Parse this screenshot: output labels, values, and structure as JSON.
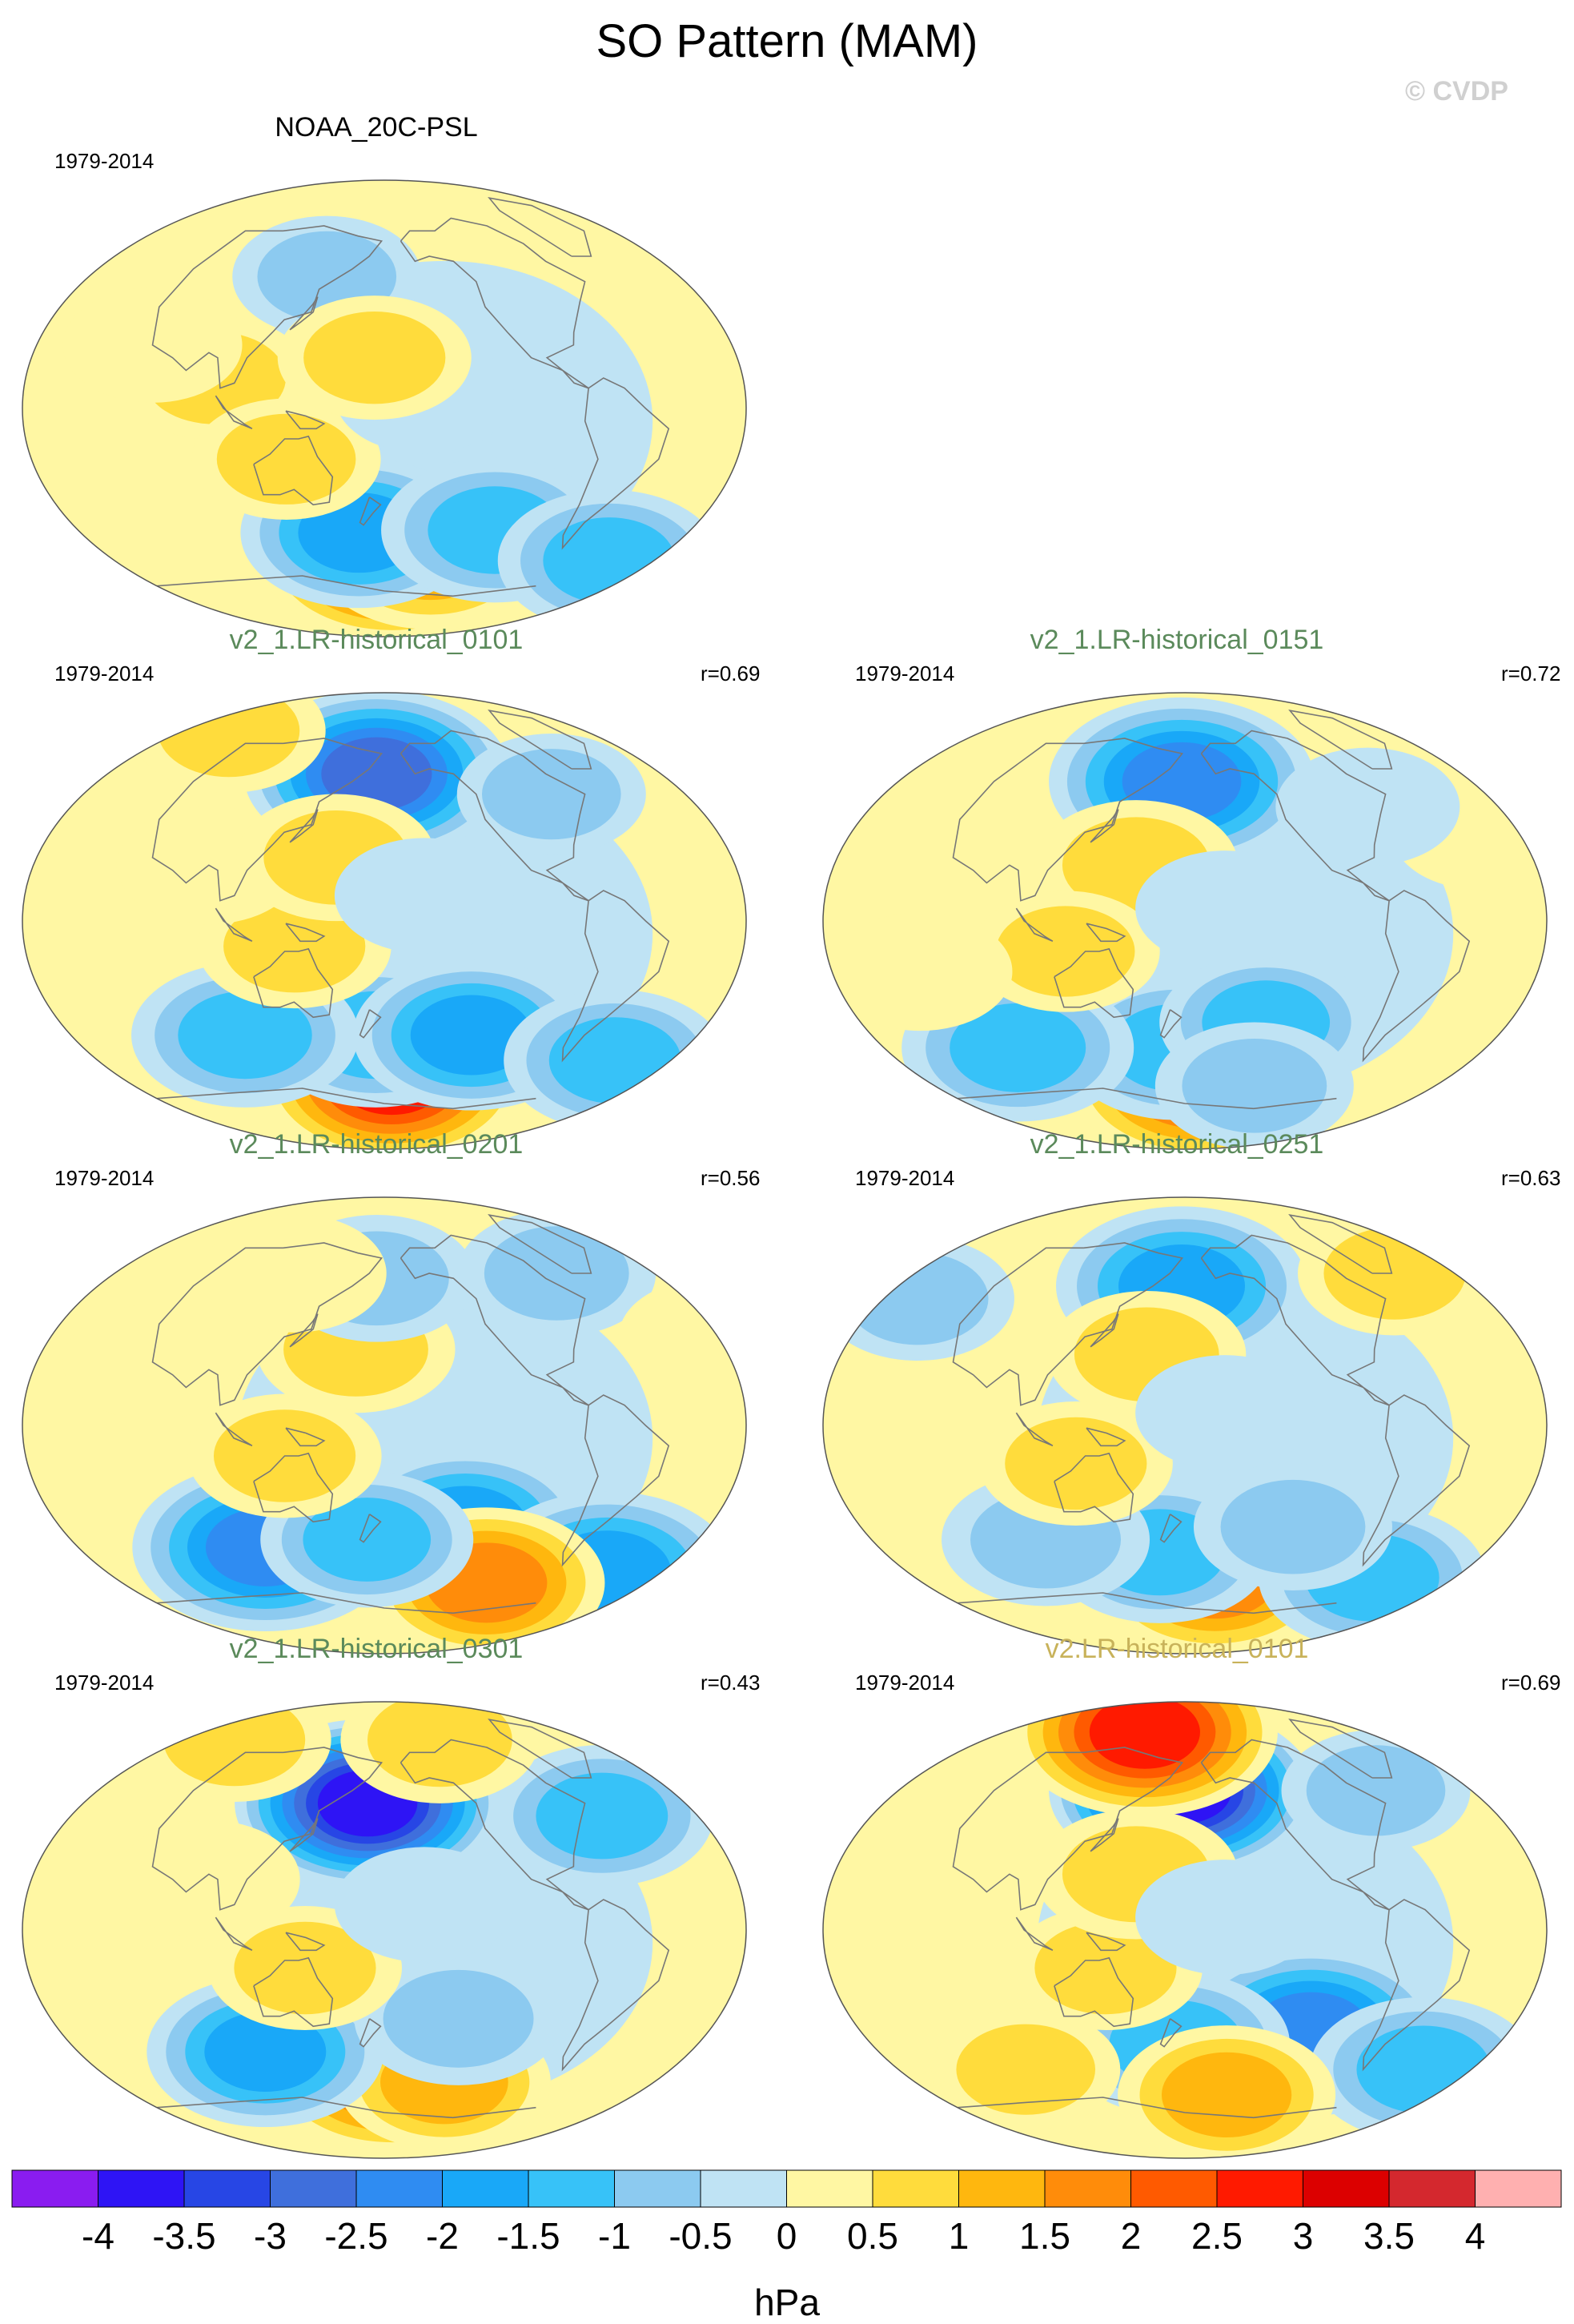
{
  "title": "SO Pattern (MAM)",
  "watermark": "© CVDP",
  "colors": {
    "dataset_title_obs": "#000000",
    "dataset_title_v2_1": "#5b8a5b",
    "dataset_title_v2": "#c8b25a",
    "coastline": "#777777"
  },
  "chart_data": {
    "type": "filled-contour-map",
    "variable": "sea level pressure pattern",
    "units": "hPa",
    "contour_levels": [
      -4,
      -3.5,
      -3,
      -2.5,
      -2,
      -1.5,
      -1,
      -0.5,
      0,
      0.5,
      1,
      1.5,
      2,
      2.5,
      3,
      3.5,
      4
    ],
    "colorbar_tick_labels": [
      "-4",
      "-3.5",
      "-3",
      "-2.5",
      "-2",
      "-1.5",
      "-1",
      "-0.5",
      "0",
      "0.5",
      "1",
      "1.5",
      "2",
      "2.5",
      "3",
      "3.5",
      "4"
    ],
    "colorbar_colors": [
      "#8a1cf0",
      "#2e14f5",
      "#2746e5",
      "#3f6fdc",
      "#2f8cf2",
      "#19a8f8",
      "#37c2f8",
      "#8ccaf0",
      "#bfe3f4",
      "#fff7a3",
      "#ffdc3c",
      "#ffb70e",
      "#ff8c0a",
      "#ff5a00",
      "#ff1a00",
      "#dc0000",
      "#d4282e",
      "#ffb0b0"
    ],
    "colorbar_unit_label": "hPa",
    "panels": [
      {
        "title": "NOAA_20C-PSL",
        "title_color_key": "dataset_title_obs",
        "period": "1979-2014",
        "correlation": "",
        "features": [
          {
            "lon": -175,
            "lat": -58,
            "value": 3.0
          },
          {
            "lon": -150,
            "lat": -58,
            "value": 1.7
          },
          {
            "lon": 165,
            "lat": -49,
            "value": -1.8
          },
          {
            "lon": -115,
            "lat": -48,
            "value": -1.6
          },
          {
            "lon": -30,
            "lat": -60,
            "value": -1.5
          },
          {
            "lon": 95,
            "lat": 12,
            "value": 0.9
          },
          {
            "lon": 130,
            "lat": -20,
            "value": 0.8
          },
          {
            "lon": 60,
            "lat": 25,
            "value": 0.6
          },
          {
            "lon": 145,
            "lat": 52,
            "value": -0.8
          },
          {
            "lon": -160,
            "lat": 5,
            "value": -0.6
          },
          {
            "lon": 175,
            "lat": 20,
            "value": 0.9
          }
        ]
      },
      {
        "title": "v2_1.LR-historical_0101",
        "title_color_key": "dataset_title_v2_1",
        "period": "1979-2014",
        "correlation": "r=0.69",
        "features": [
          {
            "lon": 175,
            "lat": 58,
            "value": -3.0
          },
          {
            "lon": -175,
            "lat": -62,
            "value": 3.0
          },
          {
            "lon": 175,
            "lat": -45,
            "value": -1.6
          },
          {
            "lon": -130,
            "lat": -45,
            "value": -1.8
          },
          {
            "lon": 100,
            "lat": -45,
            "value": -1.6
          },
          {
            "lon": -35,
            "lat": -55,
            "value": -1.5
          },
          {
            "lon": 135,
            "lat": -10,
            "value": 0.9
          },
          {
            "lon": 90,
            "lat": 22,
            "value": 0.7
          },
          {
            "lon": 155,
            "lat": 25,
            "value": 1.0
          },
          {
            "lon": -80,
            "lat": 50,
            "value": -0.8
          },
          {
            "lon": 40,
            "lat": 75,
            "value": 0.9
          },
          {
            "lon": -160,
            "lat": 10,
            "value": -0.6
          }
        ]
      },
      {
        "title": "v2_1.LR-historical_0151",
        "title_color_key": "dataset_title_v2_1",
        "period": "1979-2014",
        "correlation": "r=0.72",
        "features": [
          {
            "lon": 178,
            "lat": 55,
            "value": -2.7
          },
          {
            "lon": -170,
            "lat": -62,
            "value": 2.6
          },
          {
            "lon": 175,
            "lat": -50,
            "value": -1.6
          },
          {
            "lon": 80,
            "lat": -50,
            "value": -1.7
          },
          {
            "lon": -135,
            "lat": -40,
            "value": -1.3
          },
          {
            "lon": -130,
            "lat": -65,
            "value": -1.0
          },
          {
            "lon": 155,
            "lat": 22,
            "value": 1.1
          },
          {
            "lon": 120,
            "lat": -12,
            "value": 0.8
          },
          {
            "lon": -20,
            "lat": 35,
            "value": 0.6
          },
          {
            "lon": 45,
            "lat": -20,
            "value": 0.7
          },
          {
            "lon": -75,
            "lat": 45,
            "value": -0.7
          },
          {
            "lon": -160,
            "lat": 5,
            "value": -0.6
          }
        ]
      },
      {
        "title": "v2_1.LR-historical_0201",
        "title_color_key": "dataset_title_v2_1",
        "period": "1979-2014",
        "correlation": "r=0.56",
        "features": [
          {
            "lon": 110,
            "lat": -48,
            "value": -2.6
          },
          {
            "lon": -135,
            "lat": -40,
            "value": -2.0
          },
          {
            "lon": -35,
            "lat": -58,
            "value": -2.2
          },
          {
            "lon": -110,
            "lat": -62,
            "value": 1.8
          },
          {
            "lon": 170,
            "lat": -45,
            "value": -1.3
          },
          {
            "lon": 165,
            "lat": 30,
            "value": 1.0
          },
          {
            "lon": 130,
            "lat": -12,
            "value": 0.9
          },
          {
            "lon": 175,
            "lat": 58,
            "value": -1.0
          },
          {
            "lon": -65,
            "lat": 60,
            "value": -1.0
          },
          {
            "lon": 60,
            "lat": 25,
            "value": 0.6
          },
          {
            "lon": -5,
            "lat": 35,
            "value": 0.6
          },
          {
            "lon": 120,
            "lat": 60,
            "value": 0.7
          }
        ]
      },
      {
        "title": "v2_1.LR-historical_0251",
        "title_color_key": "dataset_title_v2_1",
        "period": "1979-2014",
        "correlation": "r=0.63",
        "features": [
          {
            "lon": 178,
            "lat": 55,
            "value": -2.1
          },
          {
            "lon": -160,
            "lat": -60,
            "value": 2.0
          },
          {
            "lon": 165,
            "lat": -50,
            "value": -1.5
          },
          {
            "lon": -55,
            "lat": -60,
            "value": -1.6
          },
          {
            "lon": 100,
            "lat": -45,
            "value": -1.2
          },
          {
            "lon": -120,
            "lat": -40,
            "value": -1.0
          },
          {
            "lon": 160,
            "lat": 28,
            "value": 1.0
          },
          {
            "lon": 125,
            "lat": -15,
            "value": 0.9
          },
          {
            "lon": -40,
            "lat": 60,
            "value": 0.9
          },
          {
            "lon": 20,
            "lat": 50,
            "value": -0.9
          },
          {
            "lon": -160,
            "lat": 5,
            "value": -0.6
          }
        ]
      },
      {
        "title": "v2_1.LR-historical_0301",
        "title_color_key": "dataset_title_v2_1",
        "period": "1979-2014",
        "correlation": "r=0.43",
        "features": [
          {
            "lon": 170,
            "lat": 50,
            "value": -4.0
          },
          {
            "lon": -175,
            "lat": -55,
            "value": 2.5
          },
          {
            "lon": -140,
            "lat": -60,
            "value": 1.3
          },
          {
            "lon": 110,
            "lat": -48,
            "value": -1.8
          },
          {
            "lon": -140,
            "lat": -35,
            "value": -1.2
          },
          {
            "lon": -55,
            "lat": 45,
            "value": -1.5
          },
          {
            "lon": 140,
            "lat": -15,
            "value": 0.9
          },
          {
            "lon": 90,
            "lat": 20,
            "value": 0.7
          },
          {
            "lon": -130,
            "lat": 75,
            "value": 1.0
          },
          {
            "lon": 45,
            "lat": 75,
            "value": 0.9
          },
          {
            "lon": -160,
            "lat": 10,
            "value": -0.6
          }
        ]
      },
      {
        "title": "v2.LR-historical_0101",
        "title_color_key": "dataset_title_v2",
        "period": "1979-2014",
        "correlation": "r=0.69",
        "features": [
          {
            "lon": 178,
            "lat": 55,
            "value": -3.8
          },
          {
            "lon": 140,
            "lat": 78,
            "value": 3.0
          },
          {
            "lon": -110,
            "lat": -40,
            "value": -2.6
          },
          {
            "lon": 175,
            "lat": -45,
            "value": -1.6
          },
          {
            "lon": -30,
            "lat": -55,
            "value": -1.6
          },
          {
            "lon": -150,
            "lat": -65,
            "value": 1.4
          },
          {
            "lon": 140,
            "lat": -15,
            "value": 0.9
          },
          {
            "lon": 155,
            "lat": 22,
            "value": 1.1
          },
          {
            "lon": 60,
            "lat": 20,
            "value": 0.7
          },
          {
            "lon": -60,
            "lat": 55,
            "value": -0.8
          },
          {
            "lon": 80,
            "lat": -55,
            "value": 0.8
          },
          {
            "lon": -160,
            "lat": 5,
            "value": -0.6
          }
        ]
      }
    ]
  }
}
